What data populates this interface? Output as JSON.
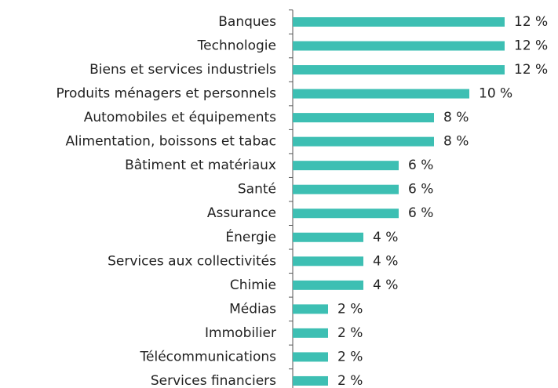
{
  "chart_data": {
    "type": "bar",
    "orientation": "horizontal",
    "color": "#3dbfb3",
    "categories": [
      "Banques",
      "Technologie",
      "Biens et services industriels",
      "Produits ménagers et personnels",
      "Automobiles et équipements",
      "Alimentation, boissons et tabac",
      "Bâtiment et matériaux",
      "Santé",
      "Assurance",
      "Énergie",
      "Services aux collectivités",
      "Chimie",
      "Médias",
      "Immobilier",
      "Télécommunications",
      "Services financiers"
    ],
    "values": [
      12,
      12,
      12,
      10,
      8,
      8,
      6,
      6,
      6,
      4,
      4,
      4,
      2,
      2,
      2,
      2
    ],
    "value_labels": [
      "12 %",
      "12 %",
      "12 %",
      "10 %",
      "8 %",
      "8 %",
      "6 %",
      "6 %",
      "6 %",
      "4 %",
      "4 %",
      "4 %",
      "2 %",
      "2 %",
      "2 %",
      "2 %"
    ]
  }
}
